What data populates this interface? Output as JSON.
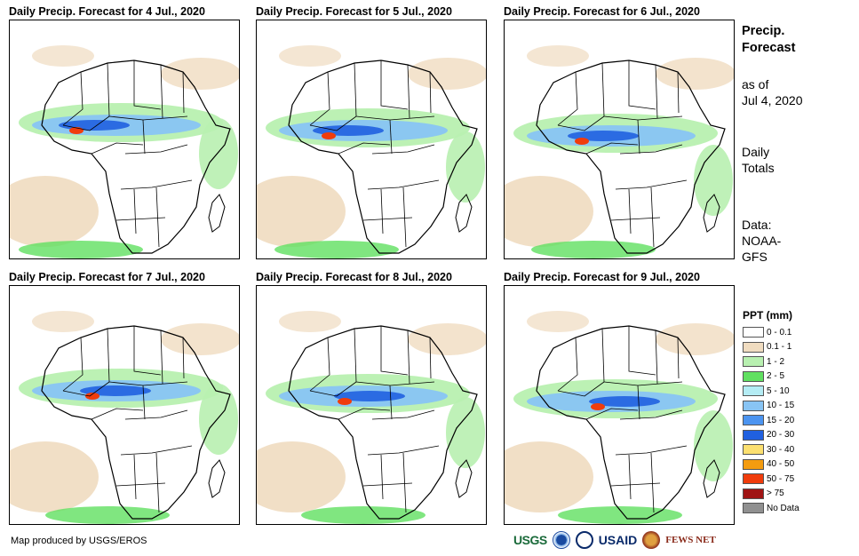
{
  "panels": [
    {
      "title": "Daily Precip. Forecast for 4 Jul., 2020"
    },
    {
      "title": "Daily Precip. Forecast for 5 Jul., 2020"
    },
    {
      "title": "Daily Precip. Forecast for 6 Jul., 2020"
    },
    {
      "title": "Daily Precip. Forecast for 7 Jul., 2020"
    },
    {
      "title": "Daily Precip. Forecast for 8 Jul., 2020"
    },
    {
      "title": "Daily Precip. Forecast for 9 Jul., 2020"
    }
  ],
  "side": {
    "title_line1": "Precip.",
    "title_line2": "Forecast",
    "asof_line1": "as of",
    "asof_line2": "Jul 4, 2020",
    "totals_line1": "Daily",
    "totals_line2": "Totals",
    "data_line1": "Data:",
    "data_line2": "NOAA-",
    "data_line3": "GFS"
  },
  "legend": {
    "title": "PPT (mm)",
    "items": [
      {
        "label": "0 - 0.1",
        "color": "#ffffff"
      },
      {
        "label": "0.1 - 1",
        "color": "#f0dcc0"
      },
      {
        "label": "1 - 2",
        "color": "#b8f0b0"
      },
      {
        "label": "2 - 5",
        "color": "#60e060"
      },
      {
        "label": "5 - 10",
        "color": "#b4ecf4"
      },
      {
        "label": "10 - 15",
        "color": "#88c4f4"
      },
      {
        "label": "15 - 20",
        "color": "#4c94f0"
      },
      {
        "label": "20 - 30",
        "color": "#2060e0"
      },
      {
        "label": "30 - 40",
        "color": "#fce070"
      },
      {
        "label": "40 - 50",
        "color": "#f49c10"
      },
      {
        "label": "50 - 75",
        "color": "#f03c0c"
      },
      {
        "label": "> 75",
        "color": "#a01414"
      },
      {
        "label": "No Data",
        "color": "#909090"
      }
    ]
  },
  "footer": {
    "credit": "Map produced by USGS/EROS"
  },
  "logos": {
    "usgs": "USGS",
    "usaid": "USAID",
    "fews": "FEWS NET"
  }
}
